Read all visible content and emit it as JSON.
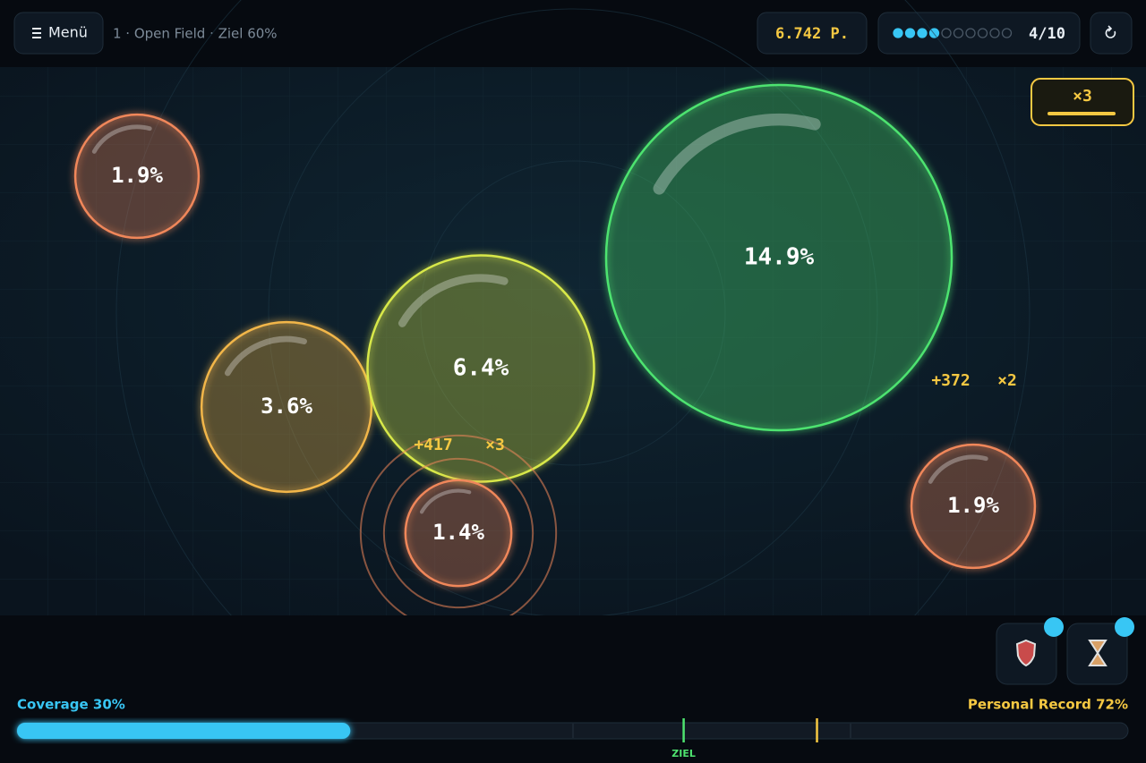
{
  "header": {
    "menu": "Menü",
    "level": "1 · Open Field · Ziel 60%",
    "score": "6.742 P.",
    "progress": {
      "label": "4/10",
      "done": 4,
      "total": 10
    }
  },
  "multiplier": "×3",
  "bubbles": [
    {
      "label": "1.9%",
      "value": 1.9
    },
    {
      "label": "14.9%",
      "value": 14.9
    },
    {
      "label": "3.6%",
      "value": 3.6
    },
    {
      "label": "6.4%",
      "value": 6.4
    },
    {
      "label": "1.4%",
      "value": 1.4
    },
    {
      "label": "1.9%",
      "value": 1.9
    }
  ],
  "popups": [
    {
      "points": "+417",
      "multiplier": "×3"
    },
    {
      "points": "+372",
      "multiplier": "×2"
    }
  ],
  "footer": {
    "coverage": {
      "label": "Coverage 30%",
      "value": 30
    },
    "record": {
      "label": "Personal Record 72%",
      "value": 72
    },
    "goal": {
      "label": "ZIEL",
      "value": 60
    }
  }
}
